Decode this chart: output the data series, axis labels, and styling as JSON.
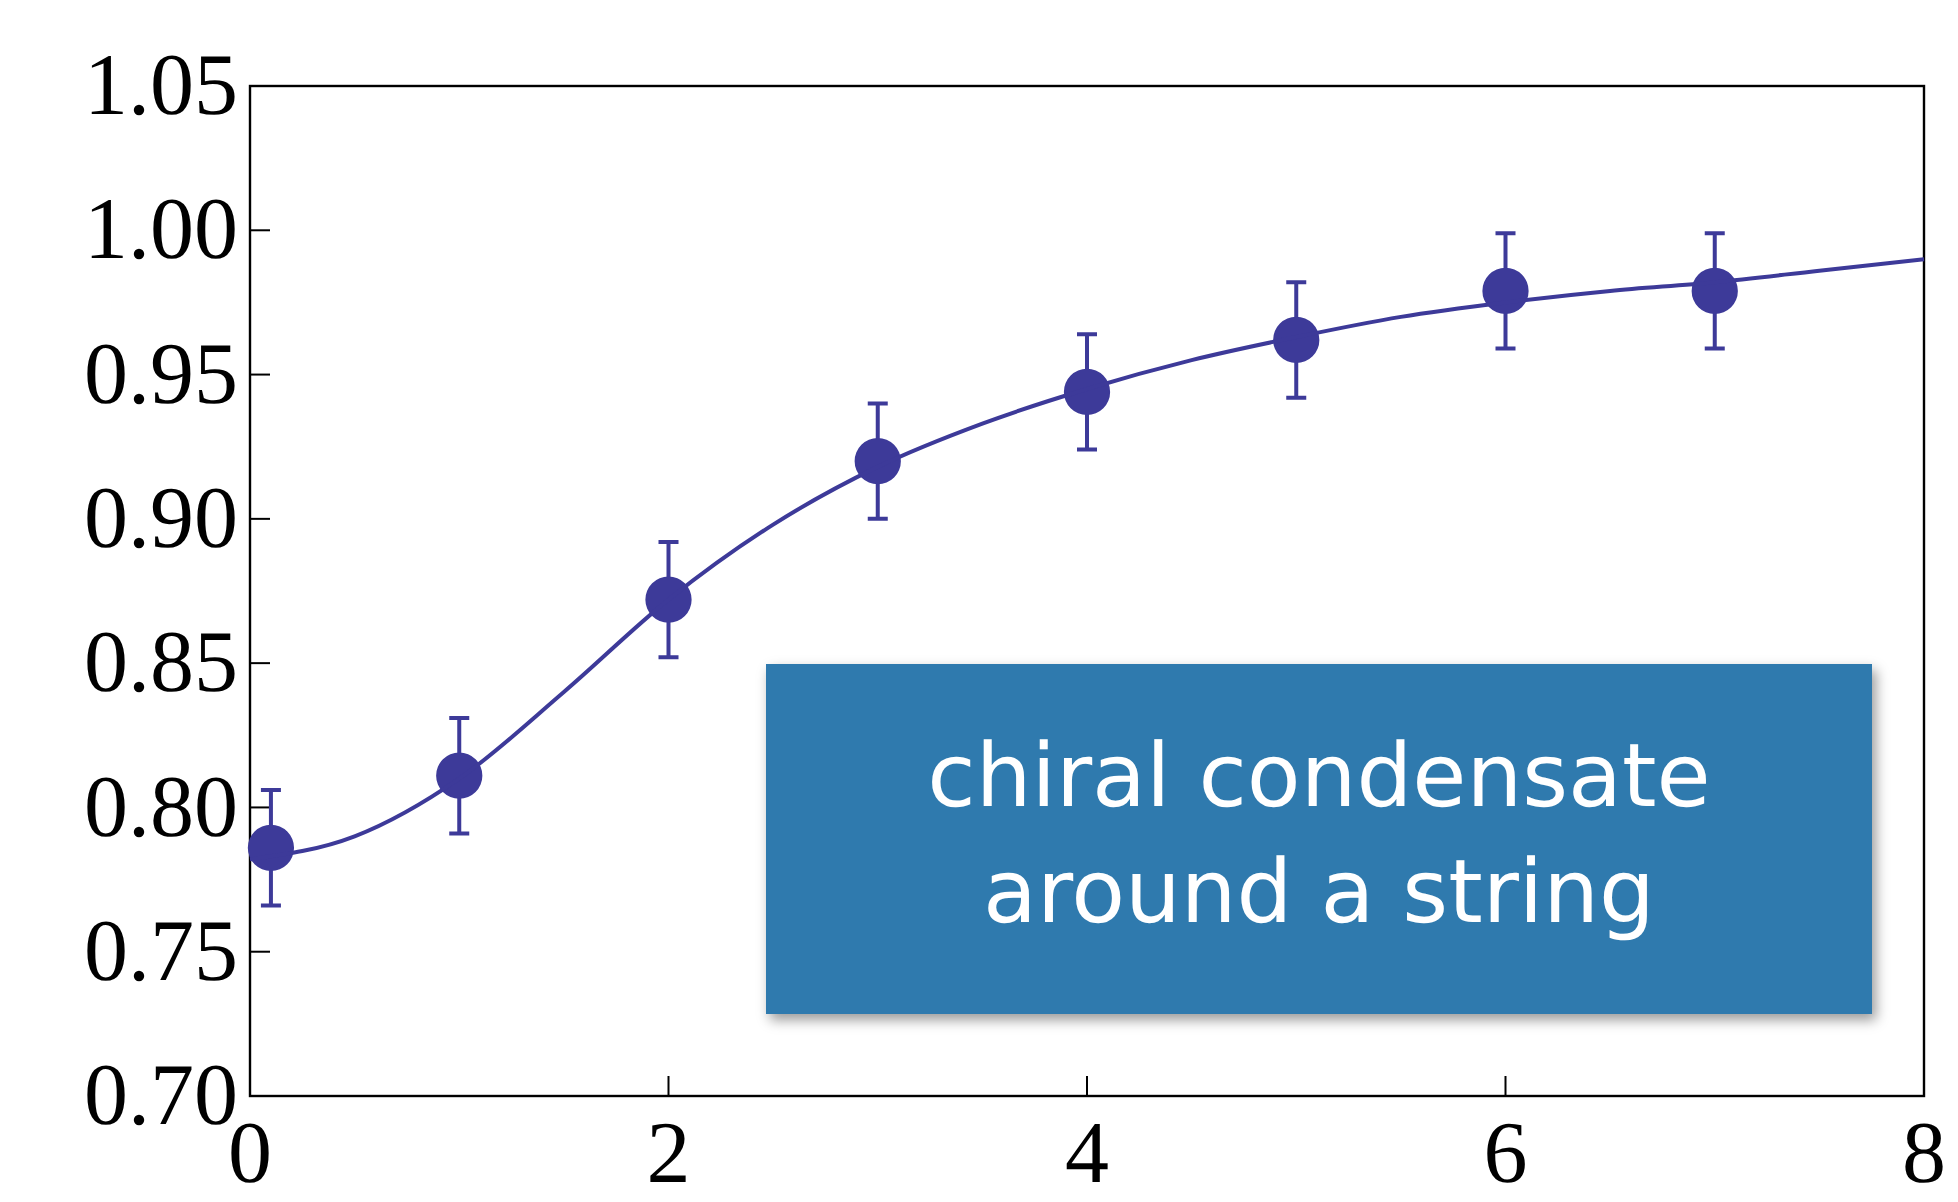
{
  "chart_data": {
    "type": "scatter",
    "xlim": [
      0,
      8
    ],
    "ylim": [
      0.7,
      1.05
    ],
    "xticks": [
      0,
      2,
      4,
      6,
      8
    ],
    "yticks": [
      {
        "value": 0.7,
        "label": "0.70"
      },
      {
        "value": 0.75,
        "label": "0.75"
      },
      {
        "value": 0.8,
        "label": "0.80"
      },
      {
        "value": 0.85,
        "label": "0.85"
      },
      {
        "value": 0.9,
        "label": "0.90"
      },
      {
        "value": 0.95,
        "label": "0.95"
      },
      {
        "value": 1.0,
        "label": "1.00"
      },
      {
        "value": 1.05,
        "label": "1.05"
      }
    ],
    "grid": false,
    "series": [
      {
        "marker": "circle",
        "color": "#3d3a99",
        "x": [
          0.1,
          1,
          2,
          3,
          4,
          5,
          6,
          7
        ],
        "values": [
          0.786,
          0.811,
          0.872,
          0.92,
          0.944,
          0.962,
          0.979,
          0.979
        ],
        "errors": [
          0.02,
          0.02,
          0.02,
          0.02,
          0.02,
          0.02,
          0.02,
          0.02
        ]
      },
      {
        "type": "line",
        "color": "#3d3a99",
        "x": [
          0,
          0.5,
          1,
          1.5,
          2,
          2.5,
          3,
          3.5,
          4,
          4.5,
          5,
          5.5,
          6,
          6.5,
          7,
          7.5,
          8
        ],
        "values": [
          0.782,
          0.79,
          0.81,
          0.84,
          0.872,
          0.898,
          0.918,
          0.933,
          0.945,
          0.955,
          0.963,
          0.97,
          0.975,
          0.979,
          0.982,
          0.986,
          0.99
        ]
      }
    ],
    "annotations": [
      "chiral condensate around a string"
    ]
  }
}
